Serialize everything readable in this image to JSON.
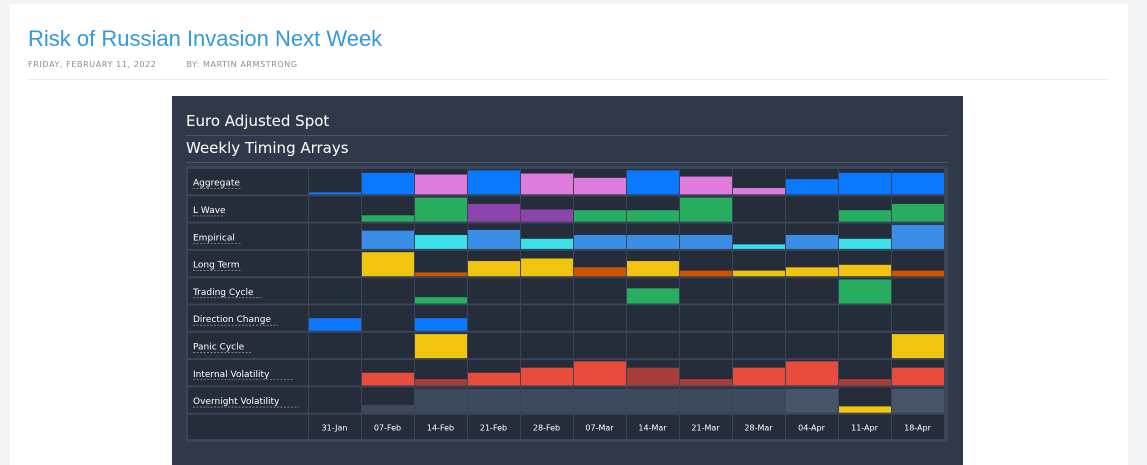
{
  "article": {
    "title": "Risk of Russian Invasion Next Week",
    "date": "FRIDAY, FEBRUARY 11, 2022",
    "byline": "BY: MARTIN ARMSTRONG"
  },
  "chart_data": {
    "type": "heatmap",
    "title": "Euro Adjusted Spot",
    "subtitle": "Weekly Timing Arrays",
    "weeks": [
      "31-Jan",
      "07-Feb",
      "14-Feb",
      "21-Feb",
      "28-Feb",
      "07-Mar",
      "14-Mar",
      "21-Mar",
      "28-Mar",
      "04-Apr",
      "11-Apr",
      "18-Apr"
    ],
    "rows": [
      {
        "label": "Aggregate",
        "color": "#0a78ff",
        "values": [
          0.08,
          0.85,
          0.78,
          0.95,
          0.82,
          0.65,
          0.95,
          0.7,
          0.25,
          0.6,
          0.85,
          0.85
        ],
        "colors": [
          "#0a78ff",
          "#0a78ff",
          "#e07bde",
          "#0a78ff",
          "#e07bde",
          "#e07bde",
          "#0a78ff",
          "#e07bde",
          "#e07bde",
          "#0a78ff",
          "#0a78ff",
          "#0a78ff"
        ]
      },
      {
        "label": "L Wave",
        "values": [
          0,
          0.25,
          0.95,
          0.7,
          0.48,
          0.45,
          0.45,
          0.95,
          0,
          0,
          0.45,
          0.7
        ],
        "colors": [
          "#27ae60",
          "#27ae60",
          "#27ae60",
          "#8e44ad",
          "#8e44ad",
          "#27ae60",
          "#27ae60",
          "#27ae60",
          "#27ae60",
          "#27ae60",
          "#27ae60",
          "#27ae60"
        ]
      },
      {
        "label": "Empirical",
        "values": [
          0,
          0.72,
          0.55,
          0.75,
          0.4,
          0.55,
          0.55,
          0.55,
          0.18,
          0.55,
          0.4,
          0.95
        ],
        "colors": [
          "#3a8ee6",
          "#3a8ee6",
          "#3ce0e8",
          "#3a8ee6",
          "#3ce0e8",
          "#3a8ee6",
          "#3a8ee6",
          "#3a8ee6",
          "#3ce0e8",
          "#3a8ee6",
          "#3ce0e8",
          "#3a8ee6"
        ]
      },
      {
        "label": "Long Term",
        "values": [
          0,
          0.95,
          0.15,
          0.6,
          0.7,
          0.35,
          0.6,
          0.22,
          0.22,
          0.35,
          0.45,
          0.22
        ],
        "colors": [
          "#f1c40f",
          "#f1c40f",
          "#d35400",
          "#f1c40f",
          "#f1c40f",
          "#d35400",
          "#f1c40f",
          "#d35400",
          "#f1c40f",
          "#f1c40f",
          "#f1c40f",
          "#d35400"
        ]
      },
      {
        "label": "Trading Cycle",
        "values": [
          0,
          0,
          0.25,
          0,
          0,
          0,
          0.6,
          0,
          0,
          0,
          0.95,
          0
        ],
        "colors": [
          "#27ae60",
          "#27ae60",
          "#27ae60",
          "#27ae60",
          "#27ae60",
          "#27ae60",
          "#27ae60",
          "#27ae60",
          "#27ae60",
          "#27ae60",
          "#27ae60",
          "#27ae60"
        ]
      },
      {
        "label": "Direction Change",
        "values": [
          0.5,
          0,
          0.5,
          0,
          0,
          0,
          0,
          0,
          0,
          0,
          0,
          0
        ],
        "colors": [
          "#0a78ff",
          "#0a78ff",
          "#0a78ff",
          "#0a78ff",
          "#0a78ff",
          "#0a78ff",
          "#0a78ff",
          "#0a78ff",
          "#0a78ff",
          "#0a78ff",
          "#0a78ff",
          "#0a78ff"
        ]
      },
      {
        "label": "Panic Cycle",
        "values": [
          0,
          0,
          0.95,
          0,
          0,
          0,
          0,
          0,
          0,
          0,
          0,
          0.95
        ],
        "colors": [
          "#f1c40f",
          "#f1c40f",
          "#f1c40f",
          "#f1c40f",
          "#f1c40f",
          "#f1c40f",
          "#f1c40f",
          "#f1c40f",
          "#f1c40f",
          "#f1c40f",
          "#f1c40f",
          "#f1c40f"
        ]
      },
      {
        "label": "Internal Volatility",
        "values": [
          0,
          0.5,
          0.25,
          0.5,
          0.7,
          0.95,
          0.7,
          0.25,
          0.7,
          0.95,
          0.25,
          0.7
        ],
        "colors": [
          "#e74c3c",
          "#e74c3c",
          "#a93d3a",
          "#e74c3c",
          "#e74c3c",
          "#e74c3c",
          "#a93d3a",
          "#a93d3a",
          "#e74c3c",
          "#e74c3c",
          "#a93d3a",
          "#e74c3c"
        ]
      },
      {
        "label": "Overnight Volatility",
        "values": [
          0,
          0.3,
          0.95,
          0.95,
          0.95,
          0.95,
          0.95,
          0.95,
          0.95,
          0.95,
          0.25,
          0.95
        ],
        "colors": [
          "#3d4a5e",
          "#3d4a5e",
          "#3d4a5e",
          "#3d4a5e",
          "#3d4a5e",
          "#3d4a5e",
          "#3d4a5e",
          "#3d4a5e",
          "#3d4a5e",
          "#47556b",
          "#f1c40f",
          "#47556b"
        ]
      }
    ],
    "grid": true
  }
}
